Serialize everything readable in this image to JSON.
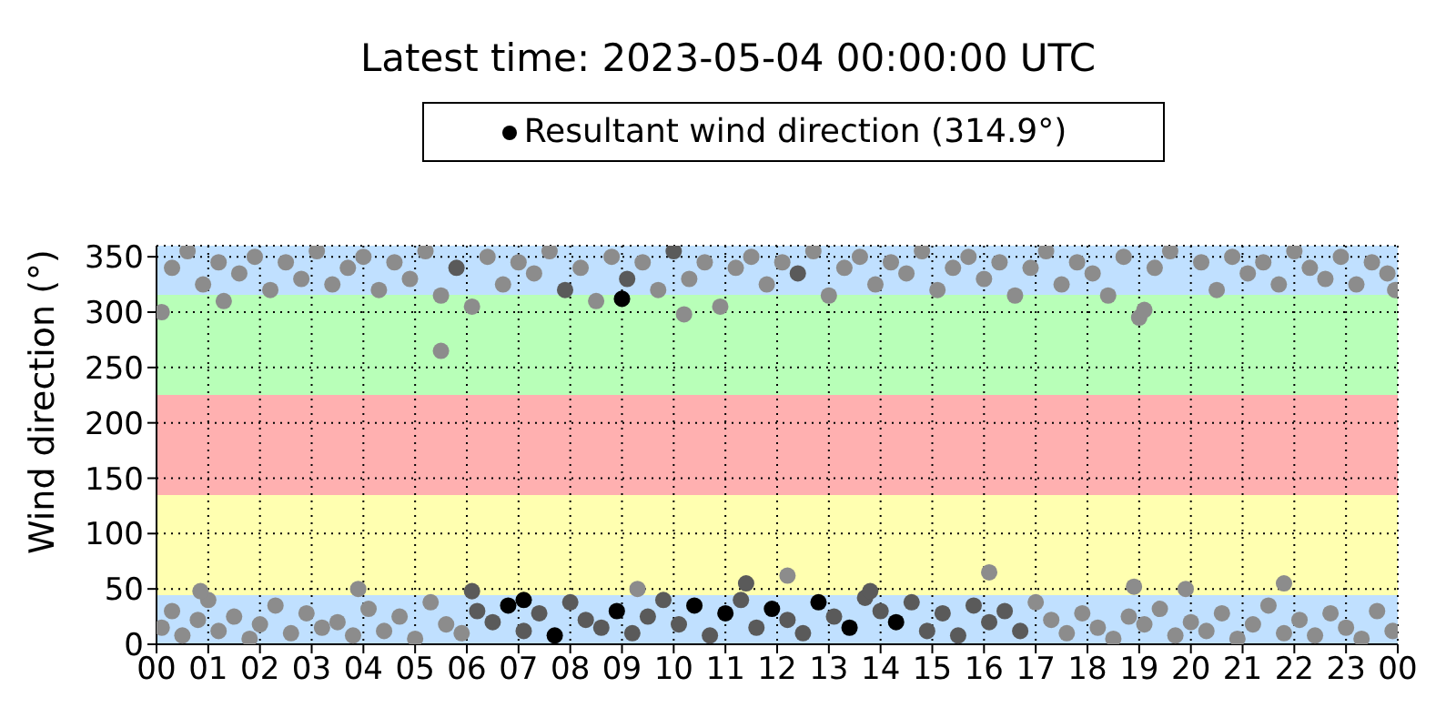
{
  "chart_data": {
    "type": "scatter",
    "title": "Latest time: 2023-05-04 00:00:00 UTC",
    "ylabel": "Wind direction (°)",
    "xlim": [
      0,
      24
    ],
    "xticks": [
      {
        "value": 0,
        "label": "00"
      },
      {
        "value": 1,
        "label": "01"
      },
      {
        "value": 2,
        "label": "02"
      },
      {
        "value": 3,
        "label": "03"
      },
      {
        "value": 4,
        "label": "04"
      },
      {
        "value": 5,
        "label": "05"
      },
      {
        "value": 6,
        "label": "06"
      },
      {
        "value": 7,
        "label": "07"
      },
      {
        "value": 8,
        "label": "08"
      },
      {
        "value": 9,
        "label": "09"
      },
      {
        "value": 10,
        "label": "10"
      },
      {
        "value": 11,
        "label": "11"
      },
      {
        "value": 12,
        "label": "12"
      },
      {
        "value": 13,
        "label": "13"
      },
      {
        "value": 14,
        "label": "14"
      },
      {
        "value": 15,
        "label": "15"
      },
      {
        "value": 16,
        "label": "16"
      },
      {
        "value": 17,
        "label": "17"
      },
      {
        "value": 18,
        "label": "18"
      },
      {
        "value": 19,
        "label": "19"
      },
      {
        "value": 20,
        "label": "20"
      },
      {
        "value": 21,
        "label": "21"
      },
      {
        "value": 22,
        "label": "22"
      },
      {
        "value": 23,
        "label": "23"
      },
      {
        "value": 24,
        "label": "00"
      }
    ],
    "ylim": [
      0,
      360
    ],
    "yticks": [
      0,
      50,
      100,
      150,
      200,
      250,
      300,
      350
    ],
    "grid": true,
    "legend": "top",
    "marker": "circle",
    "bands": [
      {
        "axis": "y",
        "from": 0,
        "to": 45,
        "color": "#c0e0ff"
      },
      {
        "axis": "y",
        "from": 45,
        "to": 135,
        "color": "#ffffb0"
      },
      {
        "axis": "y",
        "from": 135,
        "to": 225,
        "color": "#ffb0b0"
      },
      {
        "axis": "y",
        "from": 225,
        "to": 315,
        "color": "#b8ffb8"
      },
      {
        "axis": "y",
        "from": 315,
        "to": 360,
        "color": "#c0e0ff"
      }
    ],
    "series": [
      {
        "name": "Resultant wind direction (314.9°)",
        "color": "#000000",
        "x": [
          6.8,
          7.7,
          8.9,
          10.4,
          11.0,
          11.9,
          12.8,
          13.4,
          14.3,
          9.0,
          7.1
        ],
        "values": [
          35,
          8,
          30,
          35,
          28,
          32,
          38,
          15,
          20,
          312,
          40
        ]
      },
      {
        "color": "#5a5a5a",
        "x": [
          6.2,
          6.5,
          7.1,
          7.4,
          8.0,
          8.3,
          8.6,
          9.2,
          9.5,
          9.8,
          10.1,
          10.7,
          11.3,
          11.6,
          12.2,
          12.5,
          13.1,
          13.7,
          14.0,
          14.6,
          14.9,
          15.2,
          15.5,
          15.8,
          16.1,
          16.4,
          16.7,
          7.9,
          9.1,
          10.0,
          5.8,
          12.4,
          11.4,
          13.8,
          6.1
        ],
        "values": [
          30,
          20,
          12,
          28,
          38,
          22,
          15,
          10,
          25,
          40,
          18,
          8,
          40,
          15,
          22,
          10,
          25,
          42,
          30,
          38,
          12,
          28,
          8,
          35,
          20,
          30,
          12,
          320,
          330,
          355,
          340,
          335,
          55,
          48,
          48
        ]
      },
      {
        "color": "#8c8c8c",
        "x": [
          0.1,
          0.3,
          0.5,
          0.8,
          1.0,
          1.2,
          1.5,
          1.8,
          2.0,
          2.3,
          2.6,
          2.9,
          3.2,
          3.5,
          3.8,
          4.1,
          4.4,
          4.7,
          5.0,
          5.3,
          5.6,
          5.9,
          17.0,
          17.3,
          17.6,
          17.9,
          18.2,
          18.5,
          18.8,
          19.1,
          19.4,
          19.7,
          20.0,
          20.3,
          20.6,
          20.9,
          21.2,
          21.5,
          21.8,
          22.1,
          22.4,
          22.7,
          23.0,
          23.3,
          23.6,
          23.9,
          0.85,
          3.9,
          9.3,
          12.2,
          16.1,
          18.9,
          19.9,
          21.8,
          5.5,
          19.0,
          19.1,
          10.2,
          0.1,
          0.3,
          0.6,
          0.9,
          1.2,
          1.3,
          1.6,
          1.9,
          2.2,
          2.5,
          2.8,
          3.1,
          3.4,
          3.7,
          4.0,
          4.3,
          4.6,
          4.9,
          5.2,
          5.5,
          6.1,
          6.4,
          6.7,
          7.0,
          7.3,
          7.6,
          8.2,
          8.5,
          8.8,
          9.4,
          9.7,
          10.3,
          10.6,
          10.9,
          11.2,
          11.5,
          11.8,
          12.1,
          12.7,
          13.0,
          13.3,
          13.6,
          13.9,
          14.2,
          14.5,
          14.8,
          15.1,
          15.4,
          15.7,
          16.0,
          16.3,
          16.6,
          16.9,
          17.2,
          17.5,
          17.8,
          18.1,
          18.4,
          18.7,
          19.3,
          19.6,
          20.2,
          20.5,
          20.8,
          21.1,
          21.4,
          21.7,
          22.0,
          22.3,
          22.6,
          22.9,
          23.2,
          23.5,
          23.8,
          23.95
        ],
        "values": [
          15,
          30,
          8,
          22,
          40,
          12,
          25,
          5,
          18,
          35,
          10,
          28,
          15,
          20,
          8,
          32,
          12,
          25,
          5,
          38,
          18,
          10,
          38,
          22,
          10,
          28,
          15,
          5,
          25,
          18,
          32,
          8,
          20,
          12,
          28,
          5,
          18,
          35,
          10,
          22,
          8,
          28,
          15,
          5,
          30,
          12,
          48,
          50,
          50,
          62,
          65,
          52,
          50,
          55,
          265,
          295,
          302,
          298,
          300,
          340,
          355,
          325,
          345,
          310,
          335,
          350,
          320,
          345,
          330,
          355,
          325,
          340,
          350,
          320,
          345,
          330,
          355,
          315,
          305,
          350,
          325,
          345,
          335,
          355,
          340,
          310,
          350,
          345,
          320,
          330,
          345,
          305,
          340,
          350,
          325,
          345,
          355,
          315,
          340,
          350,
          325,
          345,
          335,
          355,
          320,
          340,
          350,
          330,
          345,
          315,
          340,
          355,
          325,
          345,
          335,
          315,
          350,
          340,
          355,
          345,
          320,
          350,
          335,
          345,
          325,
          355,
          340,
          330,
          350,
          325,
          345,
          335,
          320
        ]
      }
    ]
  }
}
